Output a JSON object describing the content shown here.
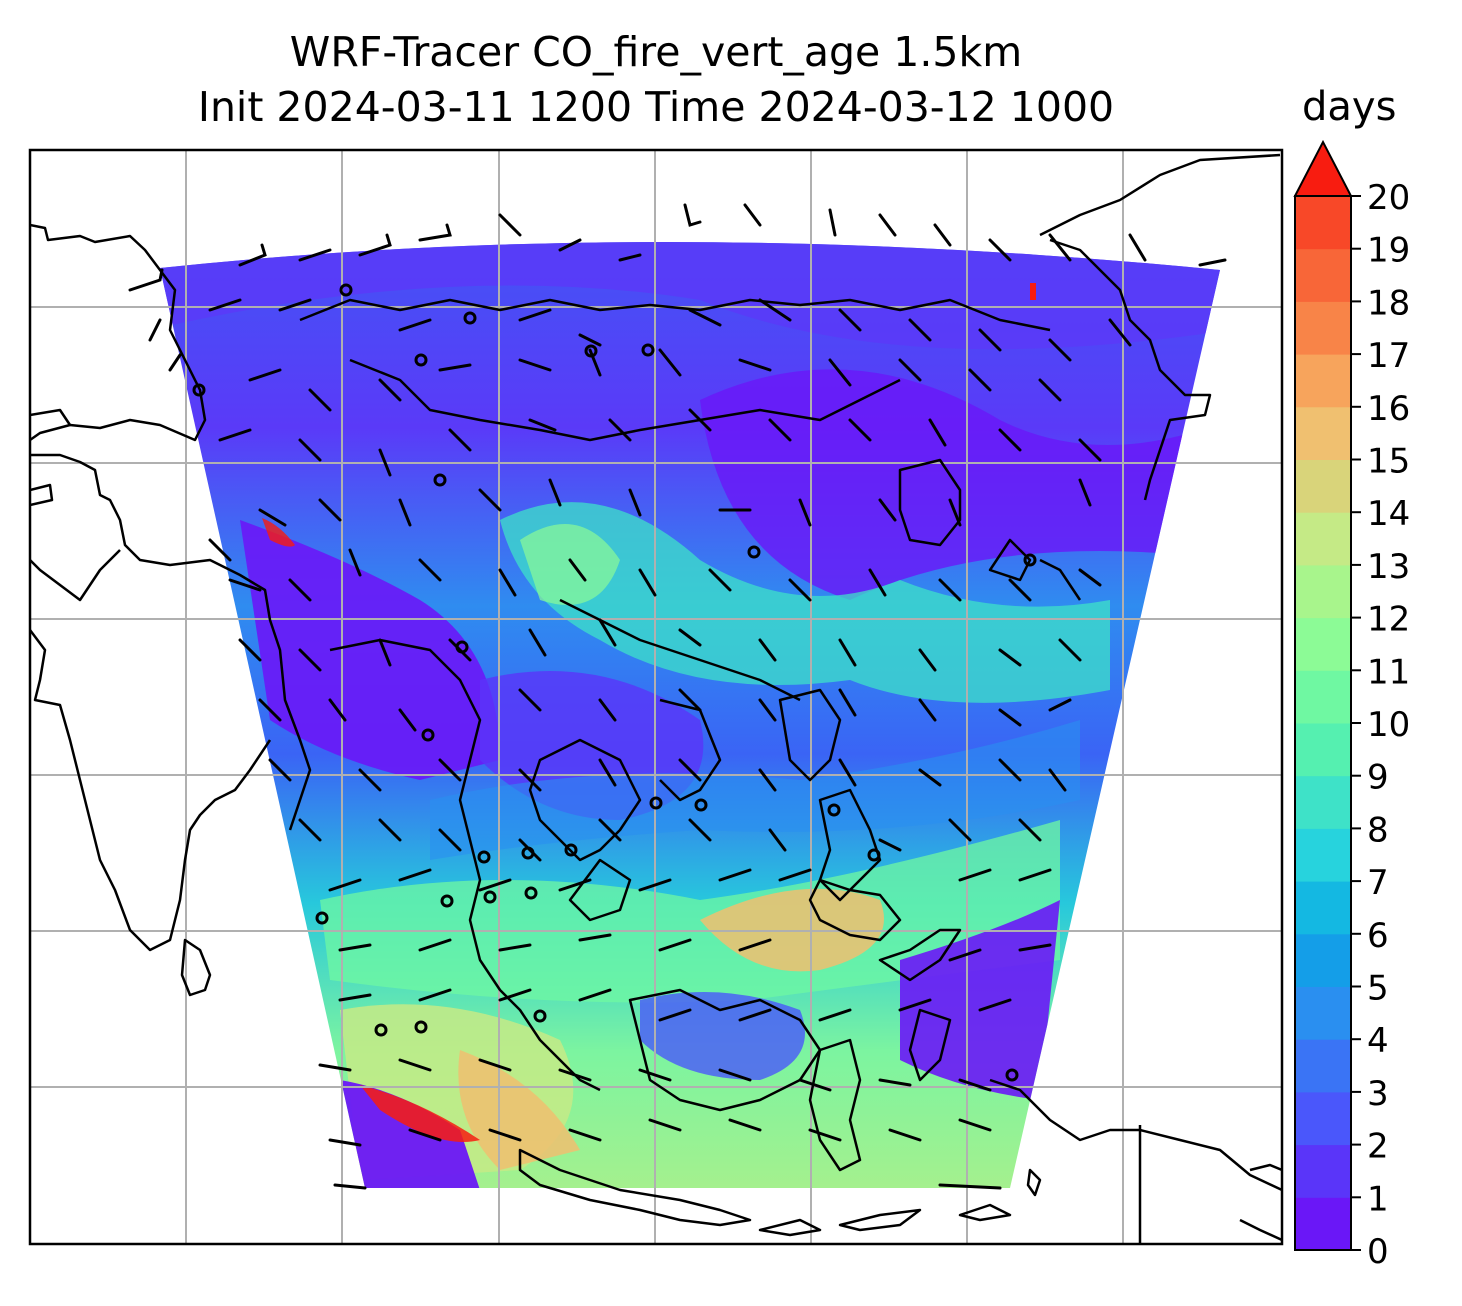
{
  "chart_data": {
    "type": "heatmap",
    "title_line1": "WRF-Tracer CO_fire_vert_age 1.5km",
    "title_line2": "Init 2024-03-11 1200 Time 2024-03-12 1000",
    "colorbar": {
      "label": "days",
      "ticks": [
        0,
        1,
        2,
        3,
        4,
        5,
        6,
        7,
        8,
        9,
        10,
        11,
        12,
        13,
        14,
        15,
        16,
        17,
        18,
        19,
        20
      ],
      "vmin": 0,
      "vmax": 20,
      "extend": "max",
      "colors": [
        "#6a17f7",
        "#5a35f9",
        "#4a57fb",
        "#3a74f5",
        "#2a8ff0",
        "#149ee8",
        "#14b8e2",
        "#27d3dd",
        "#3ee2c8",
        "#55f0b0",
        "#6ff8a2",
        "#8cfb96",
        "#a8f58c",
        "#c5ea86",
        "#d9d47a",
        "#f0c070",
        "#f7a45c",
        "#f88448",
        "#f86638",
        "#f84828",
        "#f81c10"
      ]
    },
    "field": {
      "description_values": "Gridded tracer age field rendered as colour map",
      "gridlines": true
    },
    "overlays": [
      "coastlines",
      "wind barbs",
      "gridlines"
    ]
  }
}
